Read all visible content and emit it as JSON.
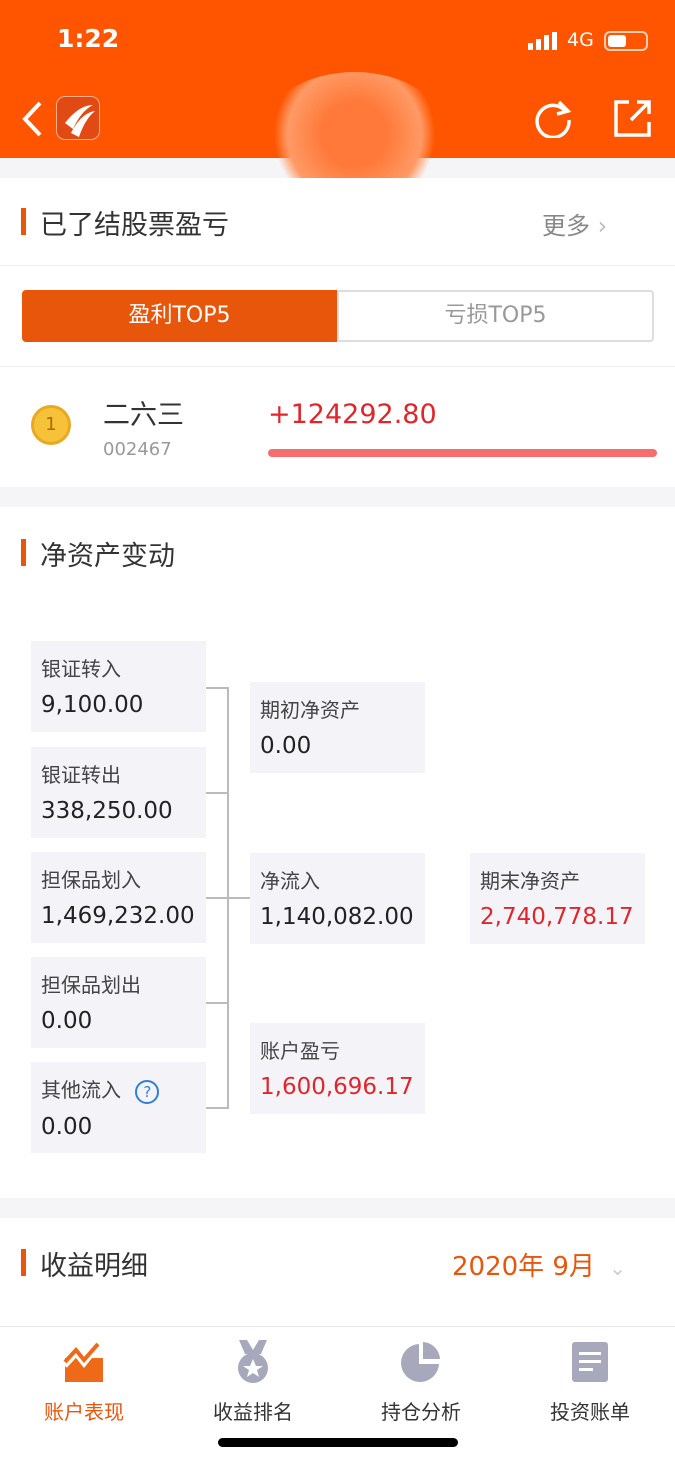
{
  "status": {
    "time": "1:22",
    "network": "4G"
  },
  "header": {
    "back_icon": "chevron-left-icon",
    "logo": "app-logo",
    "actions": [
      "refresh-icon",
      "share-icon"
    ]
  },
  "closed": {
    "title": "已了结股票盈亏",
    "more": "更多",
    "tabs": [
      "盈利TOP5",
      "亏损TOP5"
    ],
    "active_tab": 0,
    "items": [
      {
        "rank": "1",
        "name": "二六三",
        "code": "002467",
        "pnl": "+124292.80",
        "bar_fraction": 1.0
      }
    ]
  },
  "net": {
    "title": "净资产变动",
    "left": [
      {
        "label": "银证转入",
        "value": "9,100.00"
      },
      {
        "label": "银证转出",
        "value": "338,250.00"
      },
      {
        "label": "担保品划入",
        "value": "1,469,232.00"
      },
      {
        "label": "担保品划出",
        "value": "0.00"
      },
      {
        "label": "其他流入",
        "value": "0.00"
      }
    ],
    "middle": [
      {
        "label": "期初净资产",
        "value": "0.00"
      },
      {
        "label": "净流入",
        "value": "1,140,082.00"
      },
      {
        "label": "账户盈亏",
        "value": "1,600,696.17"
      }
    ],
    "end": {
      "label": "期末净资产",
      "value": "2,740,778.17"
    }
  },
  "income": {
    "title": "收益明细",
    "period": "2020年 9月"
  },
  "tabbar": [
    {
      "label": "账户表现",
      "icon": "trend-chart-icon",
      "active": true
    },
    {
      "label": "收益排名",
      "icon": "medal-icon"
    },
    {
      "label": "持仓分析",
      "icon": "pie-chart-icon"
    },
    {
      "label": "投资账单",
      "icon": "document-icon"
    }
  ],
  "colors": {
    "brand": "#FF5500",
    "accent": "#E8560C",
    "profit": "#E0262D"
  }
}
